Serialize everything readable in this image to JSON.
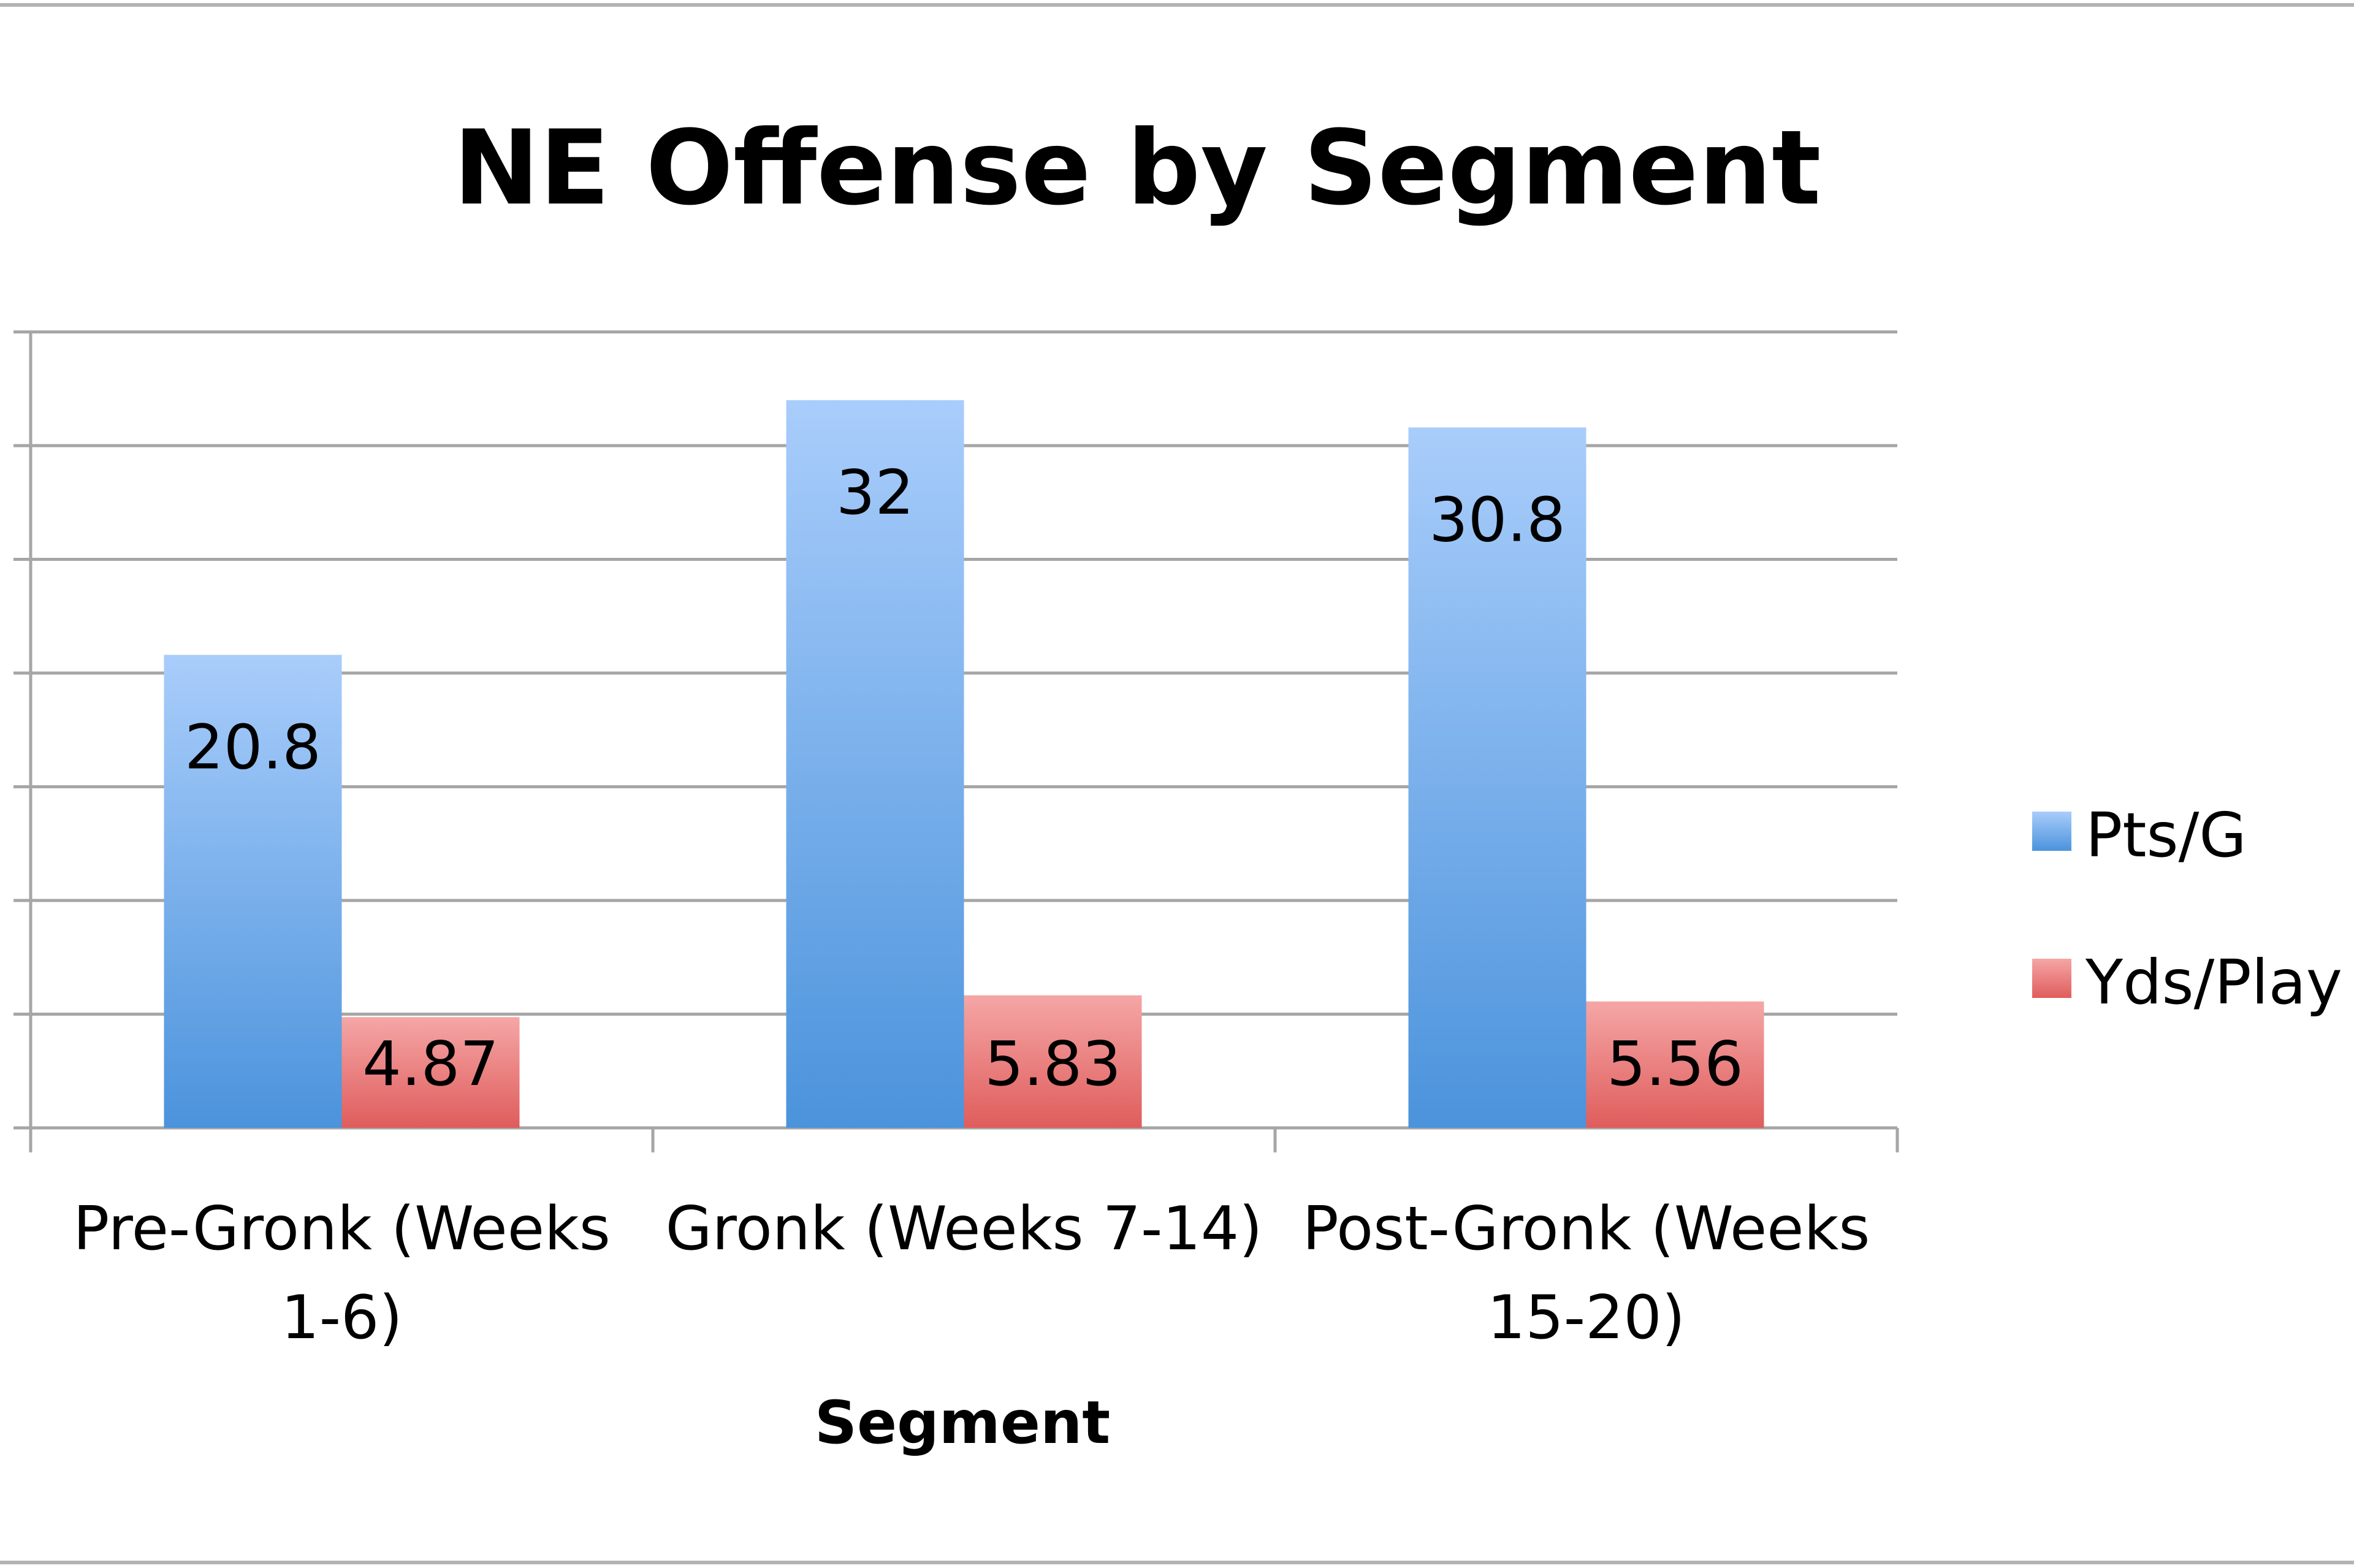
{
  "chart_data": {
    "type": "bar",
    "title": "NE Offense by Segment",
    "xlabel": "Segment",
    "ylabel": "",
    "categories": [
      [
        "Pre-Gronk (Weeks",
        "1-6)"
      ],
      [
        "Gronk (Weeks 7-14)"
      ],
      [
        "Post-Gronk (Weeks",
        "15-20)"
      ]
    ],
    "series": [
      {
        "name": "Pts/G",
        "values": [
          20.8,
          32,
          30.8
        ],
        "labels": [
          "20.8",
          "32",
          "30.8"
        ],
        "color_top": "#a9cdfb",
        "color_bottom": "#4b93dc"
      },
      {
        "name": "Yds/Play",
        "values": [
          4.87,
          5.83,
          5.56
        ],
        "labels": [
          "4.87",
          "5.83",
          "5.56"
        ],
        "color_top": "#f5a6a6",
        "color_bottom": "#df5d5c"
      }
    ],
    "ylim": [
      0,
      35
    ],
    "y_tick_step": 5,
    "y_tick_labels_visible": false,
    "grid": true,
    "legend_position": "right"
  }
}
